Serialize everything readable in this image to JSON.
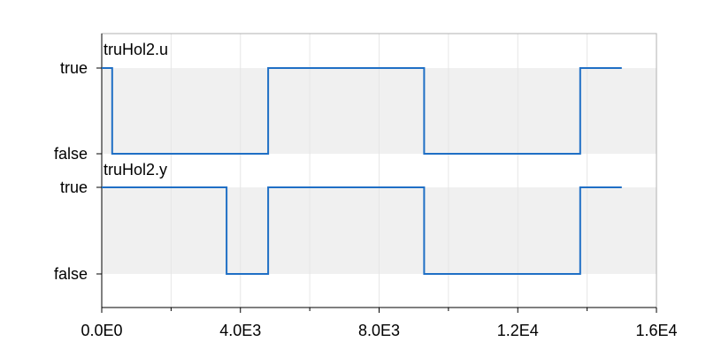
{
  "chart_data": [
    {
      "type": "line",
      "step": "post",
      "series": [
        {
          "name": "truHol2.u",
          "x": [
            0,
            300,
            300,
            4800,
            4800,
            9300,
            9300,
            13800,
            13800,
            15000
          ],
          "y": [
            1,
            1,
            0,
            0,
            1,
            1,
            0,
            0,
            1,
            1
          ]
        }
      ],
      "ytick_labels": [
        "false",
        "true"
      ],
      "ylim": [
        0,
        1
      ],
      "xlim": [
        0,
        16000
      ],
      "band": true
    },
    {
      "type": "line",
      "step": "post",
      "series": [
        {
          "name": "truHol2.y",
          "x": [
            0,
            3600,
            3600,
            4800,
            4800,
            9300,
            9300,
            13800,
            13800,
            15000
          ],
          "y": [
            1,
            1,
            0,
            0,
            1,
            1,
            0,
            0,
            1,
            1
          ]
        }
      ],
      "ytick_labels": [
        "false",
        "true"
      ],
      "ylim": [
        0,
        1
      ],
      "xlim": [
        0,
        16000
      ],
      "band": true
    }
  ],
  "x_axis": {
    "ticks": [
      0,
      4000,
      8000,
      12000,
      16000
    ],
    "tick_labels": [
      "0.0E0",
      "4.0E3",
      "8.0E3",
      "1.2E4",
      "1.6E4"
    ],
    "minor_ticks": [
      2000,
      6000,
      10000,
      14000
    ]
  },
  "colors": {
    "line": "#1f6fc5",
    "band": "#f0f0f0",
    "axis": "#000000",
    "grid": "#e6e6e6"
  }
}
